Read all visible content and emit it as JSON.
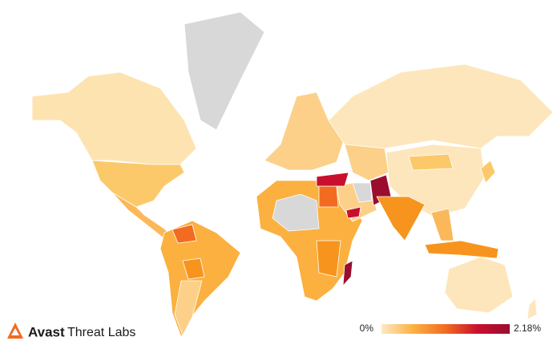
{
  "brand": {
    "name": "Avast",
    "product": "Threat Labs"
  },
  "map": {
    "legend": {
      "min": {
        "value": 0,
        "label": "0%"
      },
      "max": {
        "value": 2.18,
        "label": "2.18%"
      },
      "colors": [
        "#fde9c4",
        "#fbb040",
        "#f26b21",
        "#c8102e",
        "#9b0d2e"
      ]
    }
  }
}
